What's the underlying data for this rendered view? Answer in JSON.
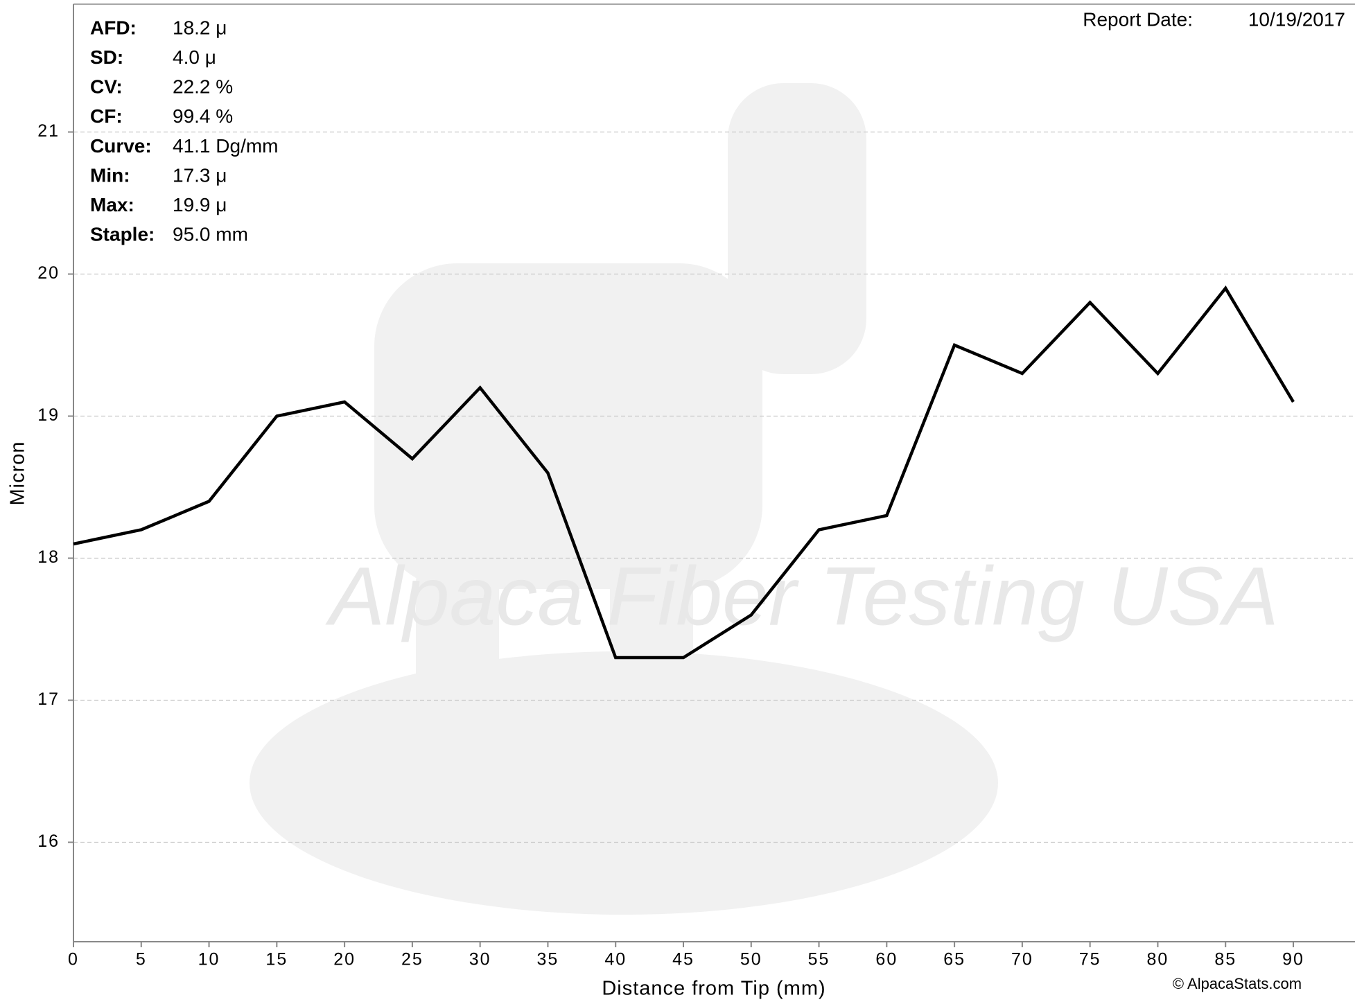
{
  "chart_data": {
    "type": "line",
    "x_label": "Distance from Tip (mm)",
    "y_label": "Micron",
    "x": [
      0,
      5,
      10,
      15,
      20,
      25,
      30,
      35,
      40,
      45,
      50,
      55,
      60,
      65,
      70,
      75,
      80,
      85,
      90
    ],
    "series": [
      {
        "color": "#000000",
        "values": [
          18.1,
          18.2,
          18.4,
          19.0,
          19.1,
          18.7,
          19.2,
          18.6,
          17.3,
          17.3,
          17.6,
          18.2,
          18.3,
          19.5,
          19.3,
          19.8,
          19.3,
          19.9,
          19.1
        ]
      }
    ],
    "xlim": [
      0,
      94.5
    ],
    "ylim": [
      15.3,
      21.9
    ],
    "xticks": [
      0,
      5,
      10,
      15,
      20,
      25,
      30,
      35,
      40,
      45,
      50,
      55,
      60,
      65,
      70,
      75,
      80,
      85,
      90
    ],
    "yticks": [
      16,
      17,
      18,
      19,
      20,
      21
    ],
    "grid": true,
    "stats": [
      {
        "label": "AFD:",
        "value": "18.2 μ"
      },
      {
        "label": "SD:",
        "value": "4.0 μ"
      },
      {
        "label": "CV:",
        "value": "22.2 %"
      },
      {
        "label": "CF:",
        "value": "99.4 %"
      },
      {
        "label": "Curve:",
        "value": "41.1 Dg/mm"
      },
      {
        "label": "Min:",
        "value": "17.3 μ"
      },
      {
        "label": "Max:",
        "value": "19.9 μ"
      },
      {
        "label": "Staple:",
        "value": "95.0 mm"
      }
    ],
    "report_date_label": "Report Date:",
    "report_date": "10/19/2017",
    "watermark": "Alpaca Fiber Testing USA",
    "copyright": "© AlpacaStats.com"
  }
}
